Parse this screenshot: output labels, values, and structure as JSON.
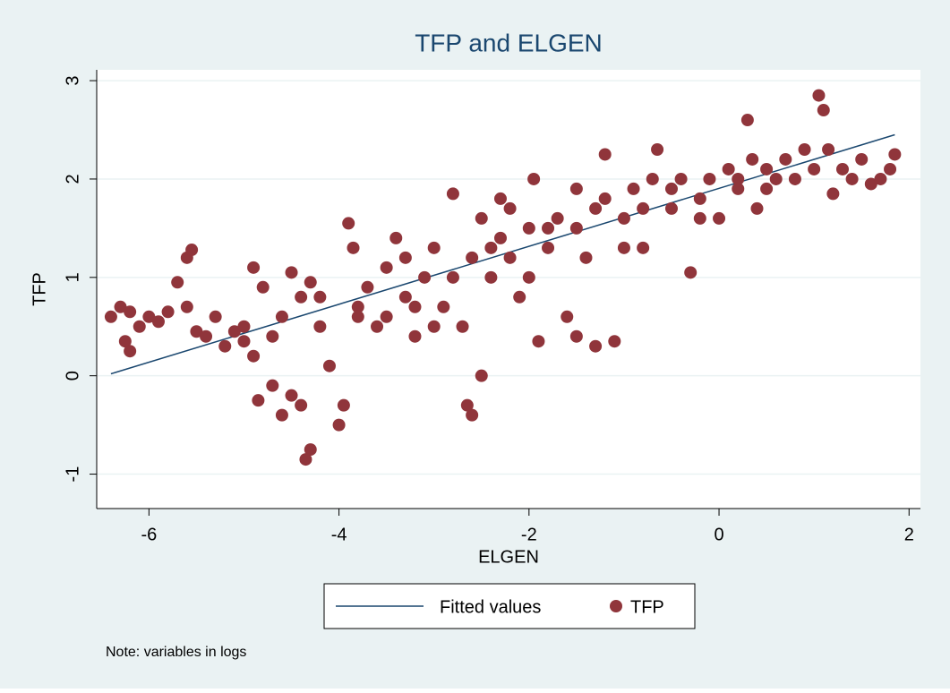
{
  "chart_data": {
    "type": "scatter",
    "title": "TFP and ELGEN",
    "xlabel": "ELGEN",
    "ylabel": "TFP",
    "note": "Note: variables in logs",
    "xlim": [
      -6.55,
      2.12
    ],
    "ylim": [
      -1.35,
      3.11
    ],
    "xticks": [
      -6,
      -4,
      -2,
      0,
      2
    ],
    "yticks": [
      -1,
      0,
      1,
      2,
      3
    ],
    "grid": true,
    "legend": "bottom",
    "series": [
      {
        "name": "Fitted values",
        "type": "line",
        "color": "#1a476f",
        "x": [
          -6.4,
          1.85
        ],
        "values": [
          0.02,
          2.45
        ]
      },
      {
        "name": "TFP",
        "type": "scatter",
        "color": "#90353b",
        "x": [
          -6.4,
          -6.3,
          -6.2,
          -6.25,
          -6.2,
          -6.1,
          -6.0,
          -5.9,
          -5.8,
          -5.7,
          -5.6,
          -5.55,
          -5.6,
          -5.5,
          -5.4,
          -5.3,
          -5.2,
          -5.1,
          -5.0,
          -4.9,
          -4.9,
          -4.8,
          -4.85,
          -4.7,
          -4.6,
          -4.5,
          -4.6,
          -4.5,
          -4.4,
          -4.3,
          -4.35,
          -4.3,
          -4.4,
          -4.2,
          -4.1,
          -4.0,
          -3.95,
          -3.9,
          -3.85,
          -3.8,
          -3.7,
          -3.6,
          -3.5,
          -3.4,
          -3.3,
          -3.2,
          -3.1,
          -3.0,
          -2.9,
          -2.8,
          -2.7,
          -2.6,
          -2.6,
          -2.65,
          -2.5,
          -2.5,
          -2.4,
          -2.3,
          -2.2,
          -2.1,
          -2.0,
          -1.95,
          -1.9,
          -1.8,
          -1.7,
          -1.6,
          -1.5,
          -1.4,
          -1.3,
          -1.2,
          -1.2,
          -1.1,
          -1.0,
          -0.9,
          -0.8,
          -0.7,
          -0.65,
          -0.5,
          -0.4,
          -0.3,
          -0.2,
          -0.1,
          0.0,
          0.1,
          0.2,
          0.3,
          0.35,
          0.4,
          0.5,
          0.6,
          0.7,
          0.8,
          0.9,
          1.0,
          1.05,
          1.1,
          1.15,
          1.2,
          1.3,
          1.4,
          1.5,
          1.6,
          1.7,
          1.8,
          1.85,
          -3.8,
          -3.5,
          -3.2,
          -3.0,
          -2.8,
          -2.4,
          -2.2,
          -2.0,
          -1.8,
          -1.5,
          -1.3,
          -1.0,
          -0.8,
          -0.5,
          -0.2,
          0.2,
          0.5,
          -4.7,
          -5.0,
          -4.2,
          -1.5,
          -2.3,
          -3.3
        ],
        "values": [
          0.6,
          0.7,
          0.65,
          0.35,
          0.25,
          0.5,
          0.6,
          0.55,
          0.65,
          0.95,
          1.2,
          1.28,
          0.7,
          0.45,
          0.4,
          0.6,
          0.3,
          0.45,
          0.35,
          0.2,
          1.1,
          0.9,
          -0.25,
          -0.1,
          -0.4,
          -0.2,
          0.6,
          1.05,
          0.8,
          0.95,
          -0.85,
          -0.75,
          -0.3,
          0.5,
          0.1,
          -0.5,
          -0.3,
          1.55,
          1.3,
          0.7,
          0.9,
          0.5,
          1.1,
          1.4,
          0.8,
          0.4,
          1.0,
          1.3,
          0.7,
          1.85,
          0.5,
          1.2,
          -0.4,
          -0.3,
          0.0,
          1.6,
          1.0,
          1.4,
          1.7,
          0.8,
          1.5,
          2.0,
          0.35,
          1.3,
          1.6,
          0.6,
          1.9,
          1.2,
          0.3,
          1.8,
          2.25,
          0.35,
          1.6,
          1.9,
          1.3,
          2.0,
          2.3,
          1.7,
          2.0,
          1.05,
          1.8,
          2.0,
          1.6,
          2.1,
          1.9,
          2.6,
          2.2,
          1.7,
          2.1,
          2.0,
          2.2,
          2.0,
          2.3,
          2.1,
          2.85,
          2.7,
          2.3,
          1.85,
          2.1,
          2.0,
          2.2,
          1.95,
          2.0,
          2.1,
          2.25,
          0.6,
          0.6,
          0.7,
          0.5,
          1.0,
          1.3,
          1.2,
          1.0,
          1.5,
          1.5,
          1.7,
          1.3,
          1.7,
          1.9,
          1.6,
          2.0,
          1.9,
          0.4,
          0.5,
          0.8,
          0.4,
          1.8,
          1.2
        ]
      }
    ]
  }
}
